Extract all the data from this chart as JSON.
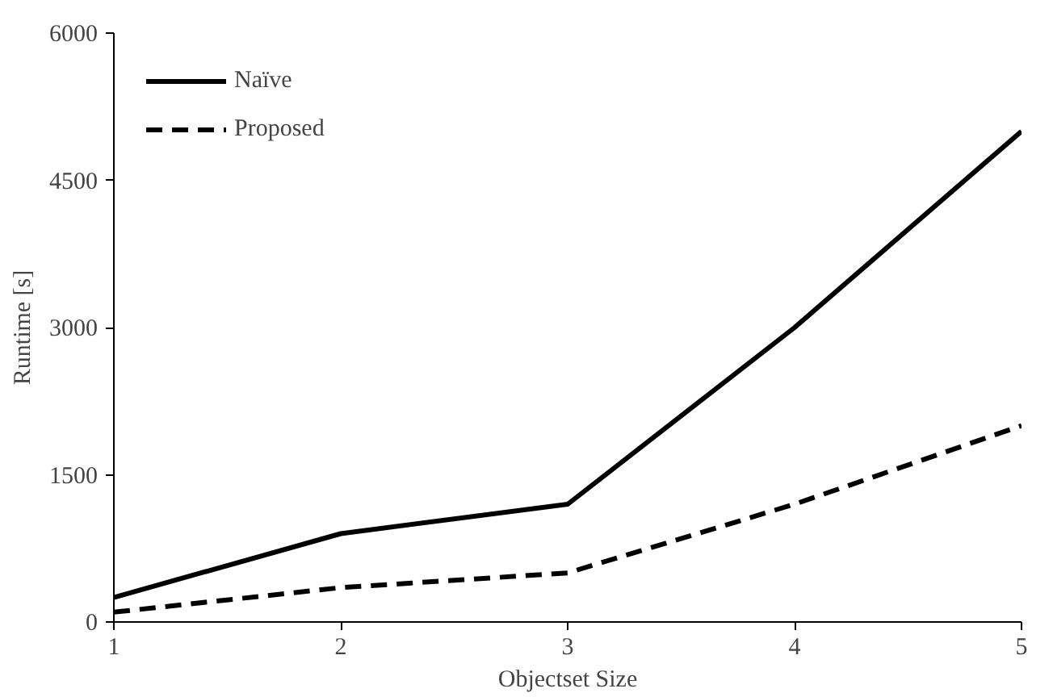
{
  "chart_data": {
    "type": "line",
    "xlabel": "Objectset Size",
    "ylabel": "Runtime [s]",
    "x": [
      1,
      2,
      3,
      4,
      5
    ],
    "series": [
      {
        "name": "Naïve",
        "color": "#000000",
        "values": [
          250,
          900,
          1200,
          3000,
          5000
        ],
        "line_style": "solid"
      },
      {
        "name": "Proposed",
        "color": "#000000",
        "values": [
          100,
          350,
          500,
          1200,
          2000
        ],
        "line_style": "dashed"
      }
    ],
    "xlim": [
      1,
      5
    ],
    "xticks": [
      1,
      2,
      3,
      4,
      5
    ],
    "ylim": [
      0,
      6000
    ],
    "yticks": [
      0,
      1500,
      3000,
      4500,
      6000
    ],
    "grid": false,
    "legend": "top left",
    "marker": "none"
  }
}
